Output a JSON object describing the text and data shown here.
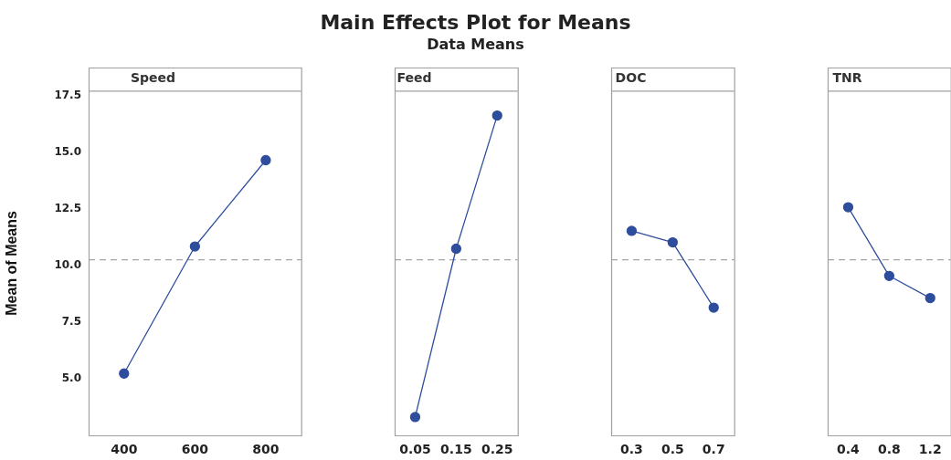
{
  "chart_data": [
    {
      "type": "other",
      "title": "Main Effects Plot for Means",
      "subtitle": "Data Means"
    },
    {
      "type": "line",
      "title": "Speed",
      "ylabel": "Mean of Means",
      "categories": [
        "400",
        "600",
        "800"
      ],
      "marker": "circle",
      "series": [
        {
          "color": "#2e4d9c",
          "values": [
            5.23,
            10.84,
            14.65
          ]
        }
      ],
      "ylim": [
        2.5,
        17.7
      ],
      "yticks": [
        {
          "value": 5,
          "label": "5.0"
        },
        {
          "value": 7.5,
          "label": "7.5"
        },
        {
          "value": 10,
          "label": "10.0"
        },
        {
          "value": 12.5,
          "label": "12.5"
        },
        {
          "value": 15,
          "label": "15.0"
        },
        {
          "value": 17.5,
          "label": "17.5"
        }
      ],
      "ref_lines": [
        {
          "axis": "y",
          "value": 10.25,
          "color": "#a6a6a6",
          "line_style": "dashed"
        }
      ]
    },
    {
      "type": "line",
      "title": "Feed",
      "categories": [
        "0.05",
        "0.15",
        "0.25"
      ],
      "marker": "circle",
      "series": [
        {
          "color": "#2e4d9c",
          "values": [
            3.31,
            10.74,
            16.62
          ]
        }
      ],
      "ylim": [
        2.5,
        17.7
      ],
      "tick_labels": "x",
      "ref_lines": [
        {
          "axis": "y",
          "value": 10.25,
          "color": "#a6a6a6",
          "line_style": "dashed"
        }
      ]
    },
    {
      "type": "line",
      "title": "DOC",
      "categories": [
        "0.3",
        "0.5",
        "0.7"
      ],
      "marker": "circle",
      "series": [
        {
          "color": "#2e4d9c",
          "values": [
            11.53,
            11.02,
            8.14
          ]
        }
      ],
      "ylim": [
        2.5,
        17.7
      ],
      "tick_labels": "x",
      "ref_lines": [
        {
          "axis": "y",
          "value": 10.25,
          "color": "#a6a6a6",
          "line_style": "dashed"
        }
      ]
    },
    {
      "type": "line",
      "title": "TNR",
      "categories": [
        "0.4",
        "0.8",
        "1.2"
      ],
      "marker": "circle",
      "series": [
        {
          "color": "#2e4d9c",
          "values": [
            12.57,
            9.54,
            8.56
          ]
        }
      ],
      "ylim": [
        2.5,
        17.7
      ],
      "tick_labels": "x",
      "ref_lines": [
        {
          "axis": "y",
          "value": 10.25,
          "color": "#a6a6a6",
          "line_style": "dashed"
        }
      ]
    }
  ]
}
